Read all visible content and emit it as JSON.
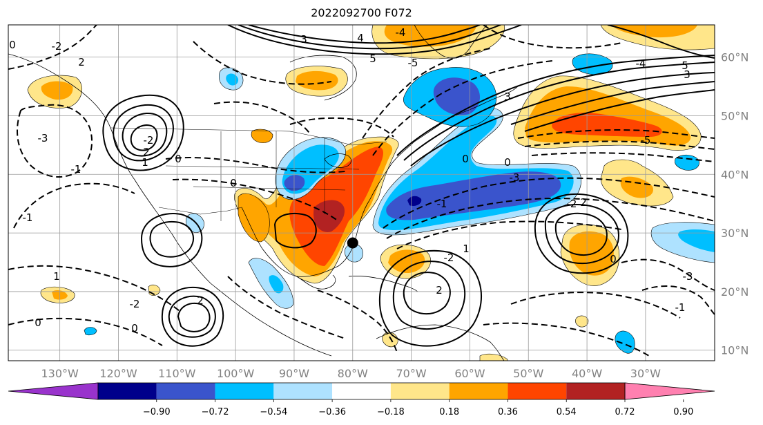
{
  "title": "2022092700 F072",
  "map": {
    "lat_labels": [
      "60°N",
      "50°N",
      "40°N",
      "30°N",
      "20°N",
      "10°N"
    ],
    "lon_labels": [
      "130°W",
      "120°W",
      "110°W",
      "100°W",
      "90°W",
      "80°W",
      "70°W",
      "60°W",
      "50°W",
      "40°W",
      "30°W"
    ],
    "label_color": "#808080",
    "gridlines": true
  },
  "colorbar": {
    "ticks": [
      "−0.90",
      "−0.72",
      "−0.54",
      "−0.36",
      "−0.18",
      "0.18",
      "0.36",
      "0.54",
      "0.72",
      "0.90"
    ],
    "colors": [
      "#9933cc",
      "#00008b",
      "#3a54cc",
      "#00bfff",
      "#aee2ff",
      "#ffffff",
      "#ffe68a",
      "#ffa500",
      "#ff4500",
      "#b22222",
      "#ff80b0"
    ]
  },
  "contour_labels": [
    "2",
    "-2",
    "3",
    "-3",
    "4",
    "-4",
    "5",
    "-5",
    "0",
    "-1",
    "1",
    "-2",
    "2",
    "0",
    "-3",
    "0",
    "-1",
    "1",
    "-2",
    "2",
    "0",
    "0",
    "2",
    "-3",
    "0",
    "-2",
    "1",
    "-1",
    "3",
    "0",
    "2",
    "-2",
    "0",
    "5",
    "3",
    "-4",
    "-3",
    "-5",
    "-1"
  ],
  "marker": {
    "lat": 28.3,
    "lon": -80.0,
    "color": "#000000"
  }
}
